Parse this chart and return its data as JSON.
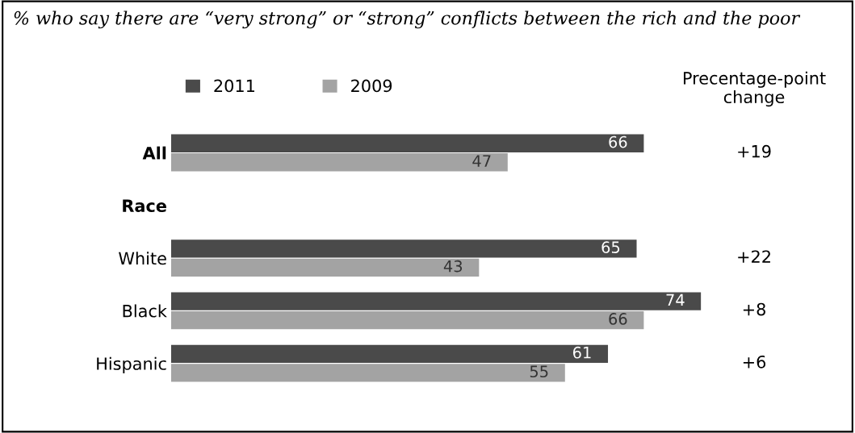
{
  "chart_data": {
    "type": "bar",
    "orientation": "horizontal",
    "title": "% who say there are “very strong” or “strong” conflicts between the rich and the poor",
    "categories": [
      "All",
      "Race",
      "White",
      "Black",
      "Hispanic"
    ],
    "series": [
      {
        "name": "2011",
        "color": "#4a4a4a",
        "values": [
          66,
          null,
          65,
          74,
          61
        ]
      },
      {
        "name": "2009",
        "color": "#a3a3a3",
        "values": [
          47,
          null,
          43,
          66,
          55
        ]
      }
    ],
    "data_labels": true,
    "legend": "top",
    "tick_labels": "y",
    "grid": false,
    "annotations": [
      "Precentage-point change",
      "+19",
      "+22",
      "+8",
      "+6"
    ]
  }
}
